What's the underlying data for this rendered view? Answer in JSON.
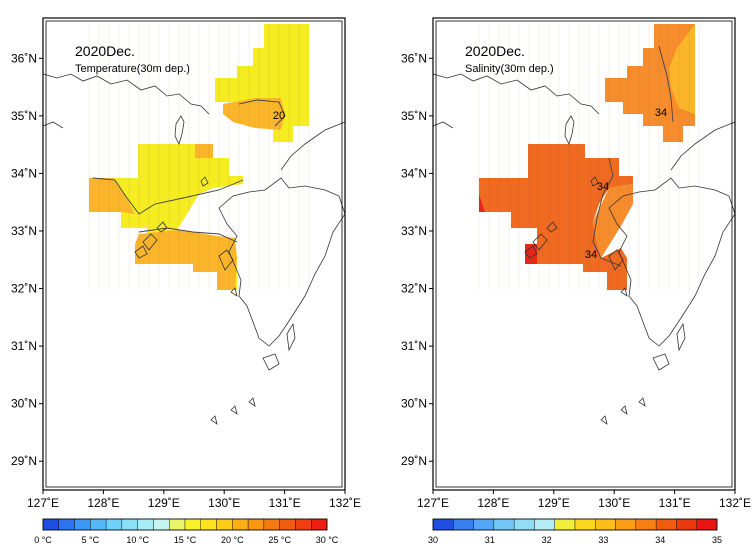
{
  "panels": [
    {
      "id": "temperature",
      "title": "2020Dec.",
      "subtitle": "Temperature(30m dep.)",
      "contour_labels": [
        "20"
      ],
      "colorbar": {
        "colors": [
          "#1f4fe0",
          "#2a74f0",
          "#3c98f5",
          "#55b8f8",
          "#6fd0f9",
          "#8ae0f7",
          "#a6eef4",
          "#c4f6ef",
          "#e6f76a",
          "#f6f22a",
          "#fde21f",
          "#fdcc18",
          "#fbb116",
          "#f99614",
          "#f57a12",
          "#f25c10",
          "#ef3f0e",
          "#ec1f10"
        ],
        "tick_labels": [
          "0 °C",
          "5 °C",
          "10 °C",
          "15 °C",
          "20 °C",
          "25 °C",
          "30 °C"
        ]
      }
    },
    {
      "id": "salinity",
      "title": "2020Dec.",
      "subtitle": "Salinity(30m dep.)",
      "contour_labels": [
        "34",
        "34",
        "34"
      ],
      "colorbar": {
        "colors": [
          "#1f4fe0",
          "#3a7ff0",
          "#55a6f6",
          "#72c6f8",
          "#92dcf6",
          "#b3ecf2",
          "#f2ee3c",
          "#fbd820",
          "#fcbf18",
          "#fa9f15",
          "#f57f12",
          "#f05c10",
          "#ec3a10",
          "#e81513"
        ],
        "tick_labels": [
          "30",
          "31",
          "32",
          "33",
          "34",
          "35"
        ]
      }
    }
  ],
  "axes": {
    "lon_labels": [
      "127˚E",
      "128˚E",
      "129˚E",
      "130˚E",
      "131˚E",
      "132˚E"
    ],
    "lat_labels": [
      "29˚N",
      "30˚N",
      "31˚N",
      "32˚N",
      "33˚N",
      "34˚N",
      "35˚N",
      "36˚N"
    ],
    "lon_range": [
      127,
      132
    ],
    "lat_range": [
      28.5,
      36.7
    ]
  }
}
